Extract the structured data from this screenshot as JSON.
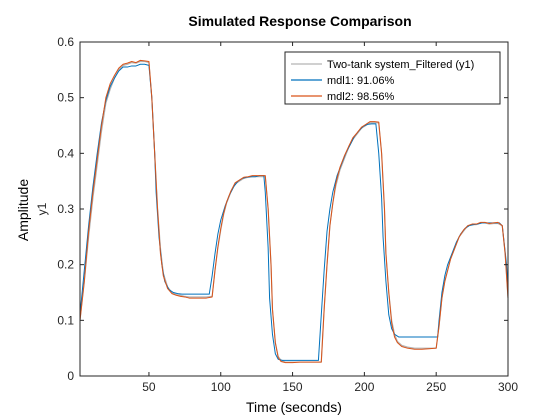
{
  "chart_data": {
    "type": "line",
    "title": "Simulated Response Comparison",
    "xlabel": "Time (seconds)",
    "ylabel": "Amplitude",
    "ylabel_channel": "y1",
    "xlim": [
      2,
      300
    ],
    "ylim": [
      0,
      0.6
    ],
    "xticks": [
      50,
      100,
      150,
      200,
      250,
      300
    ],
    "yticks": [
      0,
      0.1,
      0.2,
      0.3,
      0.4,
      0.5,
      0.6
    ],
    "ytick_labels": [
      "0",
      "0.1",
      "0.2",
      "0.3",
      "0.4",
      "0.5",
      "0.6"
    ],
    "grid": false,
    "legend_position": "top-right",
    "series": [
      {
        "name": "Two-tank system_Filtered (y1)",
        "color": "#b3b3b3",
        "x": [
          2,
          5,
          8,
          11,
          14,
          17,
          20,
          23,
          26,
          29,
          32,
          35,
          38,
          41,
          44,
          47,
          50,
          52,
          54,
          56,
          58,
          60,
          63,
          66,
          69,
          72,
          75,
          78,
          82,
          86,
          90,
          94,
          96,
          98,
          100,
          102,
          104,
          107,
          110,
          113,
          116,
          119,
          122,
          125,
          128,
          131,
          133,
          135,
          136,
          138,
          140,
          142,
          145,
          150,
          155,
          160,
          165,
          170,
          172,
          174,
          176,
          178,
          180,
          183,
          186,
          189,
          192,
          195,
          198,
          201,
          204,
          207,
          210,
          212,
          214,
          215,
          217,
          219,
          221,
          223,
          226,
          230,
          235,
          240,
          245,
          250,
          252,
          254,
          256,
          258,
          260,
          263,
          266,
          269,
          272,
          275,
          278,
          281,
          284,
          287,
          290,
          293,
          296,
          298,
          300
        ],
        "values": [
          0.1,
          0.17,
          0.25,
          0.32,
          0.38,
          0.44,
          0.49,
          0.515,
          0.535,
          0.55,
          0.558,
          0.56,
          0.563,
          0.562,
          0.565,
          0.565,
          0.563,
          0.5,
          0.4,
          0.3,
          0.23,
          0.185,
          0.16,
          0.15,
          0.146,
          0.145,
          0.143,
          0.142,
          0.142,
          0.142,
          0.142,
          0.143,
          0.19,
          0.23,
          0.262,
          0.29,
          0.31,
          0.33,
          0.345,
          0.35,
          0.355,
          0.357,
          0.358,
          0.358,
          0.358,
          0.358,
          0.3,
          0.2,
          0.12,
          0.06,
          0.035,
          0.028,
          0.025,
          0.025,
          0.025,
          0.025,
          0.025,
          0.025,
          0.12,
          0.2,
          0.27,
          0.31,
          0.34,
          0.37,
          0.39,
          0.41,
          0.425,
          0.435,
          0.445,
          0.45,
          0.455,
          0.455,
          0.455,
          0.4,
          0.3,
          0.22,
          0.15,
          0.1,
          0.075,
          0.062,
          0.055,
          0.052,
          0.05,
          0.05,
          0.05,
          0.05,
          0.09,
          0.14,
          0.17,
          0.19,
          0.21,
          0.23,
          0.25,
          0.26,
          0.27,
          0.272,
          0.272,
          0.275,
          0.275,
          0.273,
          0.274,
          0.274,
          0.27,
          0.22,
          0.14
        ]
      },
      {
        "name": "mdl1: 91.06%",
        "color": "#0072bd",
        "x": [
          2,
          5,
          8,
          11,
          14,
          17,
          20,
          23,
          26,
          29,
          32,
          35,
          38,
          41,
          44,
          47,
          50,
          52,
          54,
          55,
          57,
          59,
          61,
          64,
          67,
          70,
          73,
          76,
          80,
          84,
          88,
          92,
          94,
          96,
          98,
          100,
          103,
          106,
          109,
          112,
          115,
          118,
          121,
          124,
          127,
          130,
          131,
          133,
          134,
          136,
          138,
          140,
          143,
          148,
          153,
          158,
          163,
          168,
          170,
          172,
          174,
          176,
          178,
          181,
          184,
          187,
          190,
          193,
          196,
          199,
          202,
          205,
          208,
          210,
          212,
          213,
          215,
          217,
          219,
          221,
          224,
          228,
          233,
          238,
          243,
          248,
          251,
          252,
          254,
          256,
          258,
          261,
          264,
          267,
          270,
          273,
          276,
          279,
          282,
          285,
          288,
          291,
          294,
          296,
          299,
          300
        ],
        "values": [
          0.11,
          0.19,
          0.27,
          0.34,
          0.4,
          0.455,
          0.495,
          0.52,
          0.535,
          0.548,
          0.555,
          0.555,
          0.557,
          0.557,
          0.56,
          0.56,
          0.558,
          0.5,
          0.4,
          0.33,
          0.25,
          0.2,
          0.17,
          0.155,
          0.15,
          0.148,
          0.147,
          0.147,
          0.147,
          0.147,
          0.147,
          0.147,
          0.18,
          0.22,
          0.255,
          0.28,
          0.305,
          0.325,
          0.34,
          0.35,
          0.355,
          0.357,
          0.358,
          0.358,
          0.36,
          0.36,
          0.33,
          0.23,
          0.14,
          0.075,
          0.04,
          0.03,
          0.028,
          0.028,
          0.028,
          0.028,
          0.028,
          0.028,
          0.11,
          0.19,
          0.26,
          0.3,
          0.33,
          0.36,
          0.38,
          0.4,
          0.415,
          0.43,
          0.44,
          0.448,
          0.452,
          0.453,
          0.453,
          0.4,
          0.32,
          0.25,
          0.17,
          0.11,
          0.085,
          0.075,
          0.07,
          0.07,
          0.07,
          0.07,
          0.07,
          0.07,
          0.07,
          0.1,
          0.15,
          0.18,
          0.2,
          0.22,
          0.24,
          0.255,
          0.265,
          0.27,
          0.272,
          0.273,
          0.275,
          0.275,
          0.275,
          0.275,
          0.275,
          0.27,
          0.2,
          0.15
        ]
      },
      {
        "name": "mdl2: 98.56%",
        "color": "#d95319",
        "x": [
          2,
          5,
          8,
          11,
          14,
          17,
          20,
          23,
          26,
          29,
          32,
          35,
          38,
          41,
          44,
          47,
          50,
          52,
          54,
          56,
          58,
          60,
          63,
          66,
          69,
          72,
          75,
          78,
          82,
          86,
          90,
          94,
          96,
          98,
          100,
          102,
          104,
          107,
          110,
          113,
          116,
          119,
          122,
          125,
          128,
          131,
          133,
          135,
          136,
          138,
          140,
          142,
          145,
          150,
          155,
          160,
          165,
          170,
          172,
          174,
          176,
          178,
          180,
          183,
          186,
          189,
          192,
          195,
          198,
          201,
          204,
          207,
          210,
          212,
          214,
          215,
          217,
          219,
          221,
          223,
          226,
          230,
          235,
          240,
          245,
          250,
          252,
          254,
          256,
          258,
          260,
          263,
          266,
          269,
          272,
          275,
          278,
          281,
          284,
          287,
          290,
          293,
          296,
          298,
          300
        ],
        "values": [
          0.1,
          0.17,
          0.26,
          0.33,
          0.39,
          0.45,
          0.5,
          0.525,
          0.54,
          0.553,
          0.56,
          0.562,
          0.565,
          0.563,
          0.567,
          0.566,
          0.565,
          0.5,
          0.4,
          0.3,
          0.22,
          0.18,
          0.157,
          0.148,
          0.145,
          0.143,
          0.142,
          0.14,
          0.14,
          0.14,
          0.14,
          0.142,
          0.19,
          0.232,
          0.265,
          0.292,
          0.312,
          0.332,
          0.347,
          0.352,
          0.357,
          0.358,
          0.36,
          0.36,
          0.36,
          0.36,
          0.3,
          0.2,
          0.12,
          0.06,
          0.033,
          0.026,
          0.024,
          0.024,
          0.025,
          0.025,
          0.025,
          0.025,
          0.12,
          0.2,
          0.27,
          0.31,
          0.345,
          0.375,
          0.395,
          0.412,
          0.428,
          0.437,
          0.447,
          0.452,
          0.457,
          0.457,
          0.456,
          0.4,
          0.3,
          0.22,
          0.15,
          0.095,
          0.07,
          0.06,
          0.053,
          0.05,
          0.048,
          0.048,
          0.049,
          0.05,
          0.09,
          0.14,
          0.17,
          0.19,
          0.21,
          0.23,
          0.25,
          0.262,
          0.27,
          0.273,
          0.273,
          0.276,
          0.276,
          0.274,
          0.275,
          0.276,
          0.27,
          0.22,
          0.14
        ]
      }
    ]
  }
}
